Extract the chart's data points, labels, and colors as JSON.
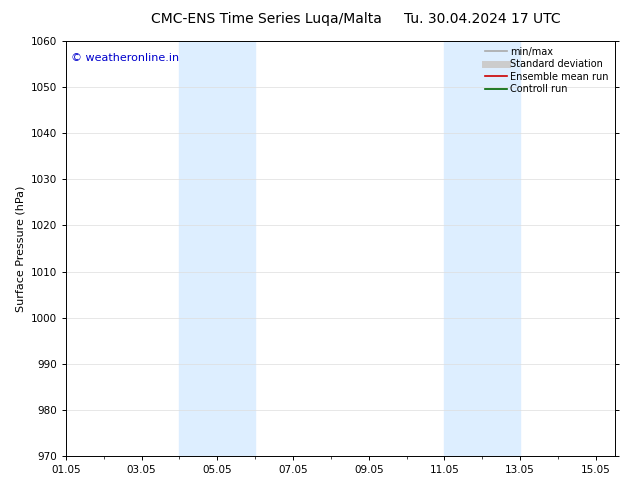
{
  "title": "CMC-ENS Time Series Luqa/Malta",
  "title2": "Tu. 30.04.2024 17 UTC",
  "ylabel": "Surface Pressure (hPa)",
  "ylim": [
    970,
    1060
  ],
  "yticks": [
    970,
    980,
    990,
    1000,
    1010,
    1020,
    1030,
    1040,
    1050,
    1060
  ],
  "xtick_labels": [
    "01.05",
    "03.05",
    "05.05",
    "07.05",
    "09.05",
    "11.05",
    "13.05",
    "15.05"
  ],
  "xtick_positions": [
    1,
    3,
    5,
    7,
    9,
    11,
    13,
    15
  ],
  "xlim": [
    1,
    15.5
  ],
  "shaded_bands": [
    {
      "xmin": 4.0,
      "xmax": 6.0,
      "color": "#ddeeff"
    },
    {
      "xmin": 11.0,
      "xmax": 13.0,
      "color": "#ddeeff"
    }
  ],
  "watermark_text": "© weatheronline.in",
  "watermark_color": "#0000cc",
  "watermark_fontsize": 8,
  "legend_entries": [
    {
      "label": "min/max",
      "color": "#aaaaaa",
      "lw": 1.2,
      "style": "solid"
    },
    {
      "label": "Standard deviation",
      "color": "#cccccc",
      "lw": 5,
      "style": "solid"
    },
    {
      "label": "Ensemble mean run",
      "color": "#cc0000",
      "lw": 1.2,
      "style": "solid"
    },
    {
      "label": "Controll run",
      "color": "#006600",
      "lw": 1.2,
      "style": "solid"
    }
  ],
  "background_color": "#ffffff",
  "grid_color": "#dddddd",
  "title_fontsize": 10,
  "axis_label_fontsize": 8,
  "tick_fontsize": 7.5
}
